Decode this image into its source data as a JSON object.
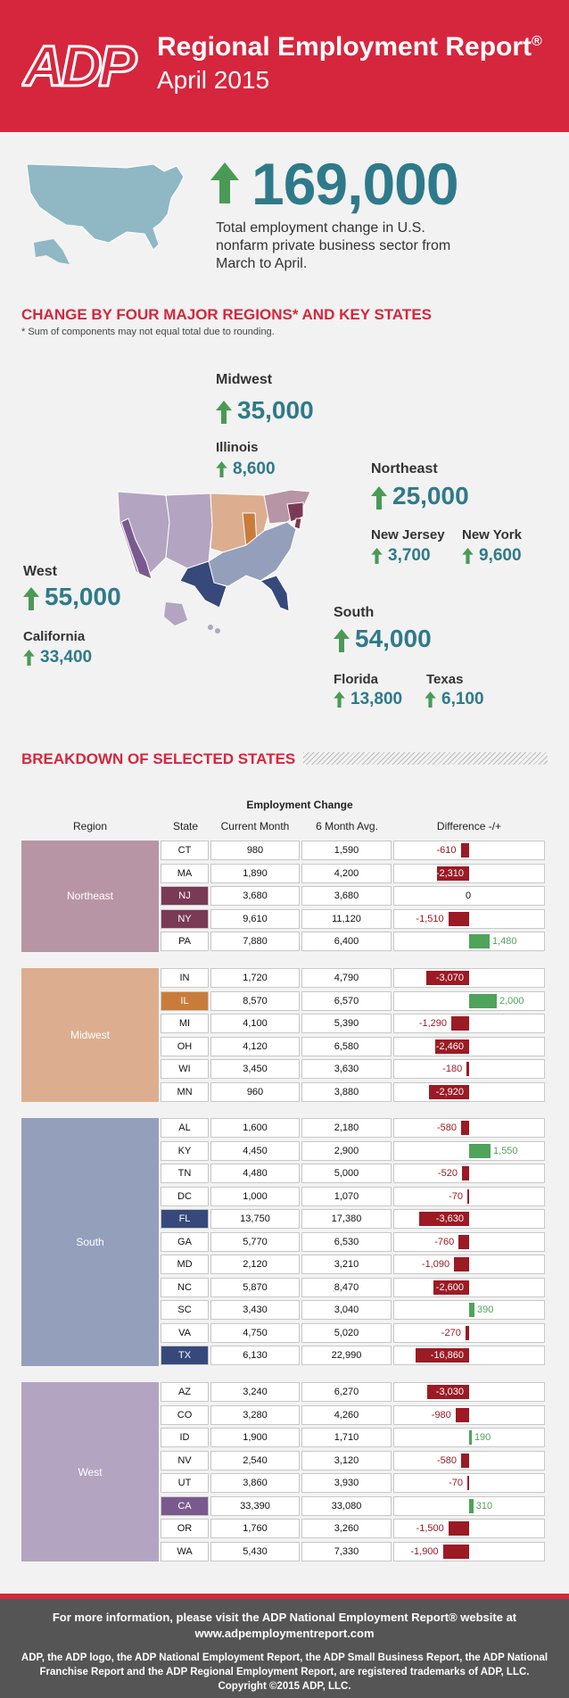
{
  "header": {
    "logo_text": "ADP",
    "title": "Regional Employment Report",
    "title_mark": "®",
    "subtitle": "April 2015"
  },
  "summary": {
    "total": "169,000",
    "description": "Total employment change in U.S. nonfarm private business sector from March to April."
  },
  "regions_section": {
    "heading": "CHANGE BY FOUR MAJOR REGIONS* AND KEY STATES",
    "note": "* Sum of components may not equal total due to rounding."
  },
  "regions": {
    "midwest": {
      "name": "Midwest",
      "value": "35,000",
      "color": "#dcae8f",
      "states": [
        {
          "name": "Illinois",
          "value": "8,600"
        }
      ]
    },
    "northeast": {
      "name": "Northeast",
      "value": "25,000",
      "color": "#b895a4",
      "states": [
        {
          "name": "New Jersey",
          "value": "3,700"
        },
        {
          "name": "New York",
          "value": "9,600"
        }
      ]
    },
    "west": {
      "name": "West",
      "value": "55,000",
      "color": "#b3a5c2",
      "states": [
        {
          "name": "California",
          "value": "33,400"
        }
      ]
    },
    "south": {
      "name": "South",
      "value": "54,000",
      "color": "#939fbb",
      "states": [
        {
          "name": "Florida",
          "value": "13,800"
        },
        {
          "name": "Texas",
          "value": "6,100"
        }
      ]
    }
  },
  "breakdown": {
    "heading": "BREAKDOWN OF SELECTED STATES",
    "group_header": "Employment Change",
    "columns": [
      "Region",
      "State",
      "Current Month",
      "6 Month Avg.",
      "Difference -/+"
    ]
  },
  "colors": {
    "accent": "#d6263d",
    "teal": "#2e7a8a",
    "positive": "#4fa35a",
    "negative": "#9c1a24",
    "arrow": "#4a9a55"
  },
  "chart_data": {
    "type": "table",
    "title": "Employment Change",
    "columns": [
      "Region",
      "State",
      "Current Month",
      "6 Month Avg.",
      "Difference -/+"
    ],
    "groups": [
      {
        "region": "Northeast",
        "color": "#b895a4",
        "highlight": "#7a3a56",
        "rows": [
          {
            "state": "CT",
            "current": "980",
            "avg": "1,590",
            "diff": "-610",
            "d": -610,
            "hl": false
          },
          {
            "state": "MA",
            "current": "1,890",
            "avg": "4,200",
            "diff": "-2,310",
            "d": -2310,
            "hl": false
          },
          {
            "state": "NJ",
            "current": "3,680",
            "avg": "3,680",
            "diff": "0",
            "d": 0,
            "hl": true
          },
          {
            "state": "NY",
            "current": "9,610",
            "avg": "11,120",
            "diff": "-1,510",
            "d": -1510,
            "hl": true
          },
          {
            "state": "PA",
            "current": "7,880",
            "avg": "6,400",
            "diff": "1,480",
            "d": 1480,
            "hl": false
          }
        ]
      },
      {
        "region": "Midwest",
        "color": "#dcae8f",
        "highlight": "#c97c3a",
        "rows": [
          {
            "state": "IN",
            "current": "1,720",
            "avg": "4,790",
            "diff": "-3,070",
            "d": -3070,
            "hl": false
          },
          {
            "state": "IL",
            "current": "8,570",
            "avg": "6,570",
            "diff": "2,000",
            "d": 2000,
            "hl": true
          },
          {
            "state": "MI",
            "current": "4,100",
            "avg": "5,390",
            "diff": "-1,290",
            "d": -1290,
            "hl": false
          },
          {
            "state": "OH",
            "current": "4,120",
            "avg": "6,580",
            "diff": "-2,460",
            "d": -2460,
            "hl": false
          },
          {
            "state": "WI",
            "current": "3,450",
            "avg": "3,630",
            "diff": "-180",
            "d": -180,
            "hl": false
          },
          {
            "state": "MN",
            "current": "960",
            "avg": "3,880",
            "diff": "-2,920",
            "d": -2920,
            "hl": false
          }
        ]
      },
      {
        "region": "South",
        "color": "#939fbb",
        "highlight": "#36497a",
        "rows": [
          {
            "state": "AL",
            "current": "1,600",
            "avg": "2,180",
            "diff": "-580",
            "d": -580,
            "hl": false
          },
          {
            "state": "KY",
            "current": "4,450",
            "avg": "2,900",
            "diff": "1,550",
            "d": 1550,
            "hl": false
          },
          {
            "state": "TN",
            "current": "4,480",
            "avg": "5,000",
            "diff": "-520",
            "d": -520,
            "hl": false
          },
          {
            "state": "DC",
            "current": "1,000",
            "avg": "1,070",
            "diff": "-70",
            "d": -70,
            "hl": false
          },
          {
            "state": "FL",
            "current": "13,750",
            "avg": "17,380",
            "diff": "-3,630",
            "d": -3630,
            "hl": true
          },
          {
            "state": "GA",
            "current": "5,770",
            "avg": "6,530",
            "diff": "-760",
            "d": -760,
            "hl": false
          },
          {
            "state": "MD",
            "current": "2,120",
            "avg": "3,210",
            "diff": "-1,090",
            "d": -1090,
            "hl": false
          },
          {
            "state": "NC",
            "current": "5,870",
            "avg": "8,470",
            "diff": "-2,600",
            "d": -2600,
            "hl": false
          },
          {
            "state": "SC",
            "current": "3,430",
            "avg": "3,040",
            "diff": "390",
            "d": 390,
            "hl": false
          },
          {
            "state": "VA",
            "current": "4,750",
            "avg": "5,020",
            "diff": "-270",
            "d": -270,
            "hl": false
          },
          {
            "state": "TX",
            "current": "6,130",
            "avg": "22,990",
            "diff": "-16,860",
            "d": -16860,
            "hl": true
          }
        ]
      },
      {
        "region": "West",
        "color": "#b3a5c2",
        "highlight": "#7a5a8e",
        "rows": [
          {
            "state": "AZ",
            "current": "3,240",
            "avg": "6,270",
            "diff": "-3,030",
            "d": -3030,
            "hl": false
          },
          {
            "state": "CO",
            "current": "3,280",
            "avg": "4,260",
            "diff": "-980",
            "d": -980,
            "hl": false
          },
          {
            "state": "ID",
            "current": "1,900",
            "avg": "1,710",
            "diff": "190",
            "d": 190,
            "hl": false
          },
          {
            "state": "NV",
            "current": "2,540",
            "avg": "3,120",
            "diff": "-580",
            "d": -580,
            "hl": false
          },
          {
            "state": "UT",
            "current": "3,860",
            "avg": "3,930",
            "diff": "-70",
            "d": -70,
            "hl": false
          },
          {
            "state": "CA",
            "current": "33,390",
            "avg": "33,080",
            "diff": "310",
            "d": 310,
            "hl": true
          },
          {
            "state": "OR",
            "current": "1,760",
            "avg": "3,260",
            "diff": "-1,500",
            "d": -1500,
            "hl": false
          },
          {
            "state": "WA",
            "current": "5,430",
            "avg": "7,330",
            "diff": "-1,900",
            "d": -1900,
            "hl": false
          }
        ]
      }
    ]
  },
  "footer": {
    "line1": "For more information, please visit the ADP National Employment Report® website at www.adpemploymentreport.com",
    "line2": "ADP, the ADP logo, the ADP National Employment Report, the ADP Small Business Report, the ADP National Franchise Report and the ADP Regional Employment Report, are registered trademarks of ADP, LLC.  Copyright ©2015 ADP, LLC."
  }
}
